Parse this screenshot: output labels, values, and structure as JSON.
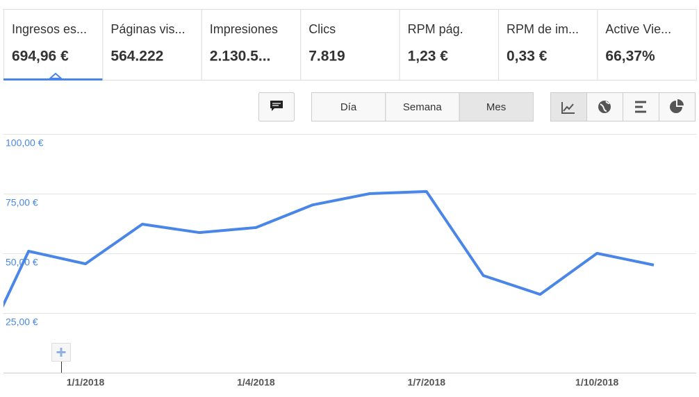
{
  "tabs": [
    {
      "label": "Ingresos es...",
      "value": "694,96 €"
    },
    {
      "label": "Páginas vis...",
      "value": "564.222"
    },
    {
      "label": "Impresiones",
      "value": "2.130.5..."
    },
    {
      "label": "Clics",
      "value": "7.819"
    },
    {
      "label": "RPM pág.",
      "value": "1,23 €"
    },
    {
      "label": "RPM de im...",
      "value": "0,33 €"
    },
    {
      "label": "Active Vie...",
      "value": "66,37%"
    }
  ],
  "selected_tab": 0,
  "period_options": [
    "Día",
    "Semana",
    "Mes"
  ],
  "selected_period": 2,
  "chart_data": {
    "type": "line",
    "x": [
      "1/11/2017",
      "1/12/2017",
      "1/1/2018",
      "1/2/2018",
      "1/3/2018",
      "1/4/2018",
      "1/5/2018",
      "1/6/2018",
      "1/7/2018",
      "1/8/2018",
      "1/9/2018",
      "1/10/2018",
      "1/11/2018"
    ],
    "series": [
      {
        "name": "Ingresos estimados",
        "color": "#4a86e8",
        "values": [
          0.4,
          50.9,
          45.6,
          62.2,
          58.7,
          60.8,
          70.3,
          75.0,
          75.9,
          40.7,
          32.8,
          50.0,
          45.1
        ]
      }
    ],
    "xticks": [
      "1/1/2018",
      "1/4/2018",
      "1/7/2018",
      "1/10/2018"
    ],
    "ylim": [
      0,
      100
    ],
    "yticks": [
      {
        "value": 25,
        "label": "25,00 €"
      },
      {
        "value": 50,
        "label": "50,00 €"
      },
      {
        "value": 75,
        "label": "75,00 €"
      },
      {
        "value": 100,
        "label": "100,00 €"
      }
    ],
    "grid": true
  }
}
